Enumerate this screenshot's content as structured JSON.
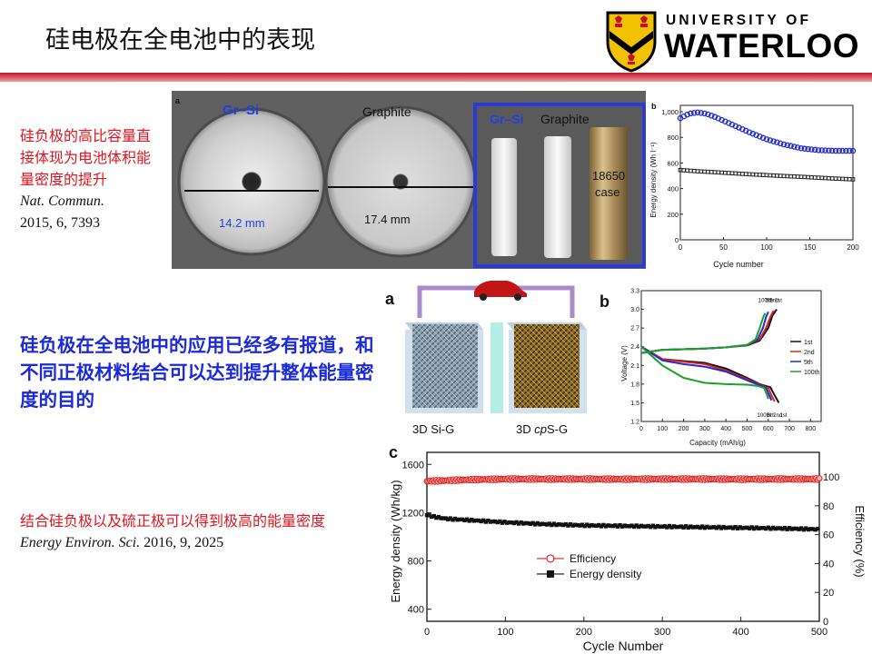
{
  "slide_title": "硅电极在全电池中的表现",
  "logo": {
    "line1": "UNIVERSITY OF",
    "line2": "WATERLOO"
  },
  "left_note_1": {
    "text": "硅负极的高比容量直接体现为电池体积能量密度的提升",
    "journal": "Nat. Commun.",
    "citation": "2015, 6, 7393"
  },
  "highlight": "硅负极在全电池中的应用已经多有报道，和不同正极材料结合可以达到提升整体能量密度的目的",
  "left_note_2": {
    "text": "结合硅负极以及硫正极可以得到极高的能量密度",
    "journal": "Energy Environ. Sci.",
    "citation": "2016, 9, 2025"
  },
  "fig1": {
    "panel_a": "a",
    "panel_b": "b",
    "label_grsi": "Gr–Si",
    "label_graphite": "Graphite",
    "dim_grsi": "14.2 mm",
    "dim_graphite": "17.4 mm",
    "inset_grsi": "Gr–Si",
    "inset_graphite": "Graphite",
    "case_line1": "18650",
    "case_line2": "case"
  },
  "fig2": {
    "panel_a": "a",
    "label_si": "3D Si-G",
    "label_s_pre": "3D ",
    "label_s_it": "cp",
    "label_s_post": "S-G",
    "panel_b": "b",
    "panel_c": "c"
  },
  "colors": {
    "accent_red": "#e0141e",
    "highlight_blue": "#1b2ad8",
    "waterloo_gold": "#f2c200"
  },
  "chart_data": [
    {
      "id": "energy-vs-cycle",
      "type": "scatter",
      "xlabel": "Cycle number",
      "ylabel": "Energy density (Wh l⁻¹)",
      "xlim": [
        0,
        200
      ],
      "ylim": [
        0,
        1050
      ],
      "x_ticks": [
        0,
        50,
        100,
        150,
        200
      ],
      "y_ticks": [
        0,
        200,
        400,
        600,
        800,
        1000
      ],
      "y_tick_labels": [
        "0",
        "200",
        "400",
        "600",
        "800",
        "1,000"
      ],
      "series": [
        {
          "color": "#1f2bd1",
          "x": [
            0,
            10,
            20,
            30,
            40,
            60,
            80,
            100,
            120,
            140,
            160,
            180,
            200
          ],
          "y": [
            950,
            985,
            995,
            985,
            960,
            900,
            840,
            785,
            745,
            715,
            700,
            695,
            695
          ]
        },
        {
          "color": "#222222",
          "x": [
            0,
            20,
            40,
            60,
            80,
            100,
            120,
            140,
            160,
            180,
            200
          ],
          "y": [
            545,
            535,
            528,
            520,
            512,
            505,
            498,
            492,
            485,
            478,
            472
          ]
        }
      ]
    },
    {
      "id": "voltage-capacity",
      "type": "line",
      "xlabel": "Capacity (mAh/g)",
      "ylabel": "Voltage (V)",
      "xlim": [
        0,
        850
      ],
      "ylim": [
        1.2,
        3.3
      ],
      "x_ticks": [
        0,
        100,
        200,
        300,
        400,
        500,
        600,
        700,
        800
      ],
      "y_ticks": [
        1.2,
        1.5,
        1.8,
        2.1,
        2.4,
        2.7,
        3.0,
        3.3
      ],
      "legend_position": "right",
      "series": [
        {
          "name": "1st",
          "color": "#111111",
          "charge": {
            "x": [
              0,
              100,
              200,
              300,
              400,
              500,
              560,
              600,
              620,
              640
            ],
            "y": [
              2.3,
              2.35,
              2.36,
              2.37,
              2.39,
              2.42,
              2.5,
              2.7,
              2.9,
              3.0
            ]
          },
          "discharge": {
            "x": [
              0,
              100,
              200,
              300,
              400,
              500,
              560,
              610,
              630,
              650
            ],
            "y": [
              2.4,
              2.2,
              2.17,
              2.14,
              2.05,
              1.9,
              1.8,
              1.75,
              1.62,
              1.5
            ]
          }
        },
        {
          "name": "2nd",
          "color": "#e02020",
          "charge": {
            "x": [
              0,
              100,
              200,
              300,
              400,
              500,
              560,
              590,
              610,
              625
            ],
            "y": [
              2.3,
              2.35,
              2.36,
              2.37,
              2.39,
              2.43,
              2.52,
              2.7,
              2.88,
              2.98
            ]
          },
          "discharge": {
            "x": [
              0,
              100,
              200,
              300,
              400,
              500,
              560,
              600,
              615,
              630
            ],
            "y": [
              2.4,
              2.2,
              2.16,
              2.12,
              2.02,
              1.88,
              1.79,
              1.74,
              1.62,
              1.52
            ]
          }
        },
        {
          "name": "5th",
          "color": "#1f2bd1",
          "charge": {
            "x": [
              0,
              100,
              200,
              300,
              400,
              500,
              550,
              575,
              590,
              600
            ],
            "y": [
              2.3,
              2.35,
              2.36,
              2.37,
              2.39,
              2.43,
              2.52,
              2.7,
              2.88,
              2.96
            ]
          },
          "discharge": {
            "x": [
              0,
              100,
              200,
              300,
              400,
              500,
              560,
              590,
              605,
              615
            ],
            "y": [
              2.4,
              2.18,
              2.12,
              2.08,
              2.0,
              1.86,
              1.78,
              1.74,
              1.62,
              1.54
            ]
          }
        },
        {
          "name": "100th",
          "color": "#1ea02a",
          "charge": {
            "x": [
              0,
              100,
              200,
              300,
              400,
              500,
              540,
              560,
              575,
              585
            ],
            "y": [
              2.3,
              2.35,
              2.36,
              2.37,
              2.39,
              2.43,
              2.52,
              2.7,
              2.86,
              2.94
            ]
          },
          "discharge": {
            "x": [
              0,
              100,
              200,
              300,
              400,
              500,
              550,
              580,
              595,
              600
            ],
            "y": [
              2.4,
              2.1,
              1.9,
              1.82,
              1.8,
              1.79,
              1.77,
              1.74,
              1.62,
              1.56
            ]
          }
        }
      ]
    },
    {
      "id": "cycling-500",
      "type": "scatter",
      "xlabel": "Cycle Number",
      "ylabel": "Energy density (Wh/kg)",
      "ylabel_right": "Efficiency (%)",
      "xlim": [
        0,
        500
      ],
      "ylim": [
        300,
        1700
      ],
      "ylim_right": [
        0,
        117
      ],
      "x_ticks": [
        0,
        100,
        200,
        300,
        400,
        500
      ],
      "y_ticks": [
        400,
        800,
        1200,
        1600
      ],
      "y_ticks_right": [
        0,
        20,
        40,
        60,
        80,
        100
      ],
      "legend_position": "center",
      "series": [
        {
          "name": "Efficiency",
          "color": "#e02020",
          "axis": "right",
          "x": [
            0,
            50,
            100,
            150,
            200,
            250,
            300,
            350,
            400,
            450,
            500
          ],
          "y": [
            97,
            98,
            98.5,
            98.5,
            98.5,
            98.4,
            98.5,
            98.5,
            98.4,
            98.5,
            98.5
          ]
        },
        {
          "name": "Energy density",
          "color": "#111111",
          "axis": "left",
          "x": [
            0,
            10,
            25,
            50,
            100,
            150,
            200,
            250,
            300,
            350,
            400,
            450,
            500
          ],
          "y": [
            1180,
            1165,
            1150,
            1140,
            1120,
            1105,
            1095,
            1090,
            1085,
            1080,
            1075,
            1070,
            1062
          ]
        }
      ]
    }
  ]
}
